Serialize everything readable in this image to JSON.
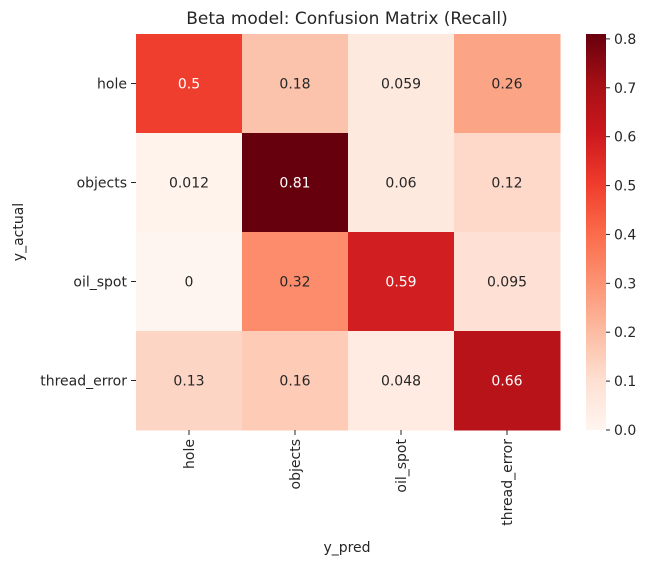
{
  "chart_data": {
    "type": "heatmap",
    "title": "Beta model: Confusion Matrix (Recall)",
    "xlabel": "y_pred",
    "ylabel": "y_actual",
    "x_categories": [
      "hole",
      "objects",
      "oil_spot",
      "thread_error"
    ],
    "y_categories": [
      "hole",
      "objects",
      "oil_spot",
      "thread_error"
    ],
    "values": [
      [
        0.5,
        0.18,
        0.059,
        0.26
      ],
      [
        0.012,
        0.81,
        0.06,
        0.12
      ],
      [
        0,
        0.32,
        0.59,
        0.095
      ],
      [
        0.13,
        0.16,
        0.048,
        0.66
      ]
    ],
    "value_labels": [
      [
        "0.5",
        "0.18",
        "0.059",
        "0.26"
      ],
      [
        "0.012",
        "0.81",
        "0.06",
        "0.12"
      ],
      [
        "0",
        "0.32",
        "0.59",
        "0.095"
      ],
      [
        "0.13",
        "0.16",
        "0.048",
        "0.66"
      ]
    ],
    "colormap": "Reds",
    "colorbar": {
      "range": [
        0,
        0.81
      ],
      "ticks": [
        0,
        0.1,
        0.2,
        0.3,
        0.4,
        0.5,
        0.6,
        0.7,
        0.8
      ],
      "tick_labels": [
        "0.0",
        "0.1",
        "0.2",
        "0.3",
        "0.4",
        "0.5",
        "0.6",
        "0.7",
        "0.8"
      ]
    }
  }
}
